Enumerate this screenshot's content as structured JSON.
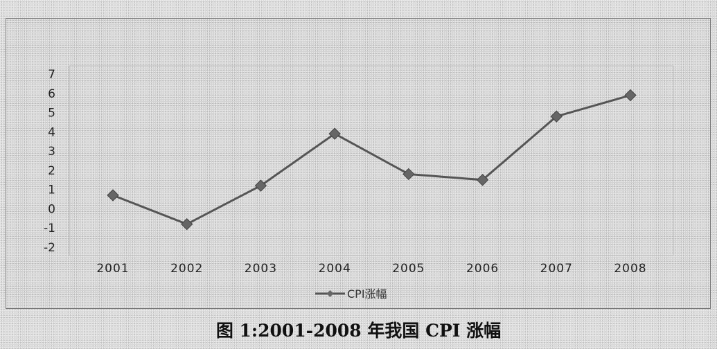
{
  "chart_data": {
    "type": "line",
    "categories": [
      "2001",
      "2002",
      "2003",
      "2004",
      "2005",
      "2006",
      "2007",
      "2008"
    ],
    "series": [
      {
        "name": "CPI涨幅",
        "values": [
          0.7,
          -0.8,
          1.2,
          3.9,
          1.8,
          1.5,
          4.8,
          5.9
        ],
        "color": "#555555"
      }
    ],
    "yticks": [
      7,
      6,
      5,
      4,
      3,
      2,
      1,
      0,
      -1,
      -2
    ],
    "ylim": [
      -2,
      7
    ],
    "legend_position": "bottom-center",
    "grid": false
  },
  "caption": "图 1:2001-2008 年我国 CPI 涨幅"
}
